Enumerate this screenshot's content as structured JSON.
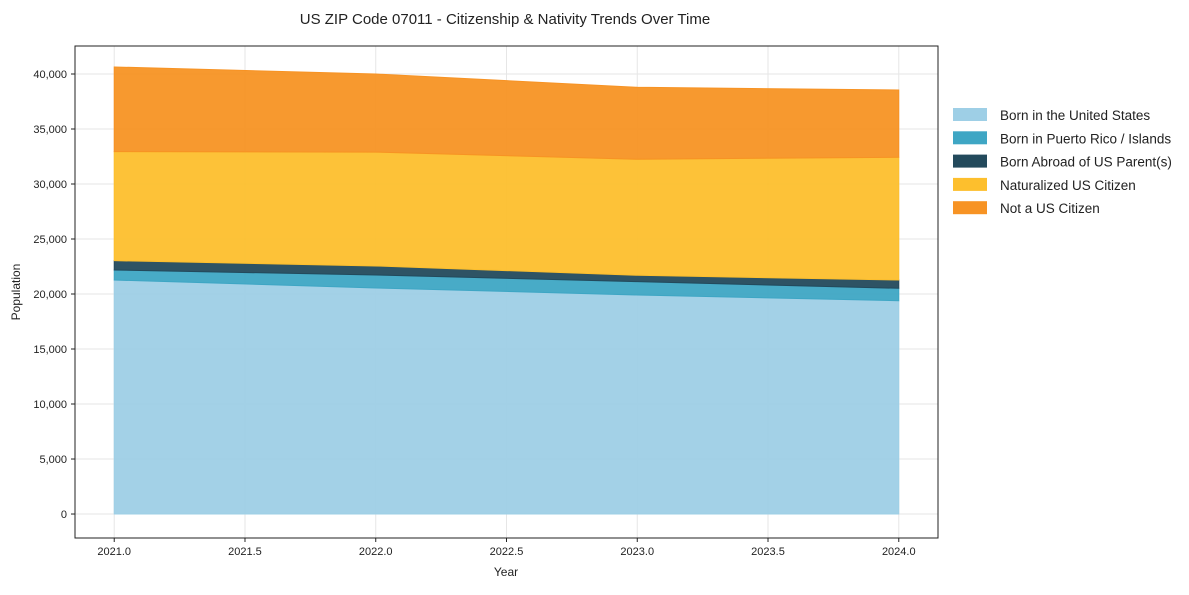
{
  "chart_data": {
    "type": "area",
    "stacked": true,
    "title": "US ZIP Code 07011 - Citizenship & Nativity Trends Over Time",
    "xlabel": "Year",
    "ylabel": "Population",
    "x": [
      2021,
      2022,
      2023,
      2024
    ],
    "xlim": [
      2020.85,
      2024.15
    ],
    "ylim": [
      -2180,
      42545
    ],
    "xticks": [
      2021.0,
      2021.5,
      2022.0,
      2022.5,
      2023.0,
      2023.5,
      2024.0
    ],
    "xtick_labels": [
      "2021.0",
      "2021.5",
      "2022.0",
      "2022.5",
      "2023.0",
      "2023.5",
      "2024.0"
    ],
    "yticks": [
      0,
      5000,
      10000,
      15000,
      20000,
      25000,
      30000,
      35000,
      40000
    ],
    "ytick_labels": [
      "0",
      "5,000",
      "10,000",
      "15,000",
      "20,000",
      "25,000",
      "30,000",
      "35,000",
      "40,000"
    ],
    "grid": true,
    "legend_position": "outside-right",
    "series": [
      {
        "name": "Born in the United States",
        "color": "#9ecfe6",
        "values": [
          21270,
          20550,
          19910,
          19390
        ]
      },
      {
        "name": "Born in Puerto Rico / Islands",
        "color": "#3ea6c4",
        "values": [
          910,
          1180,
          1210,
          1130
        ]
      },
      {
        "name": "Born Abroad of US Parent(s)",
        "color": "#234a5c",
        "values": [
          850,
          820,
          580,
          750
        ]
      },
      {
        "name": "Naturalized US Citizen",
        "color": "#fdbf2d",
        "values": [
          9910,
          10350,
          10550,
          11160
        ]
      },
      {
        "name": "Not a US Citizen",
        "color": "#f79324",
        "values": [
          7700,
          7100,
          6540,
          6115
        ]
      }
    ]
  }
}
